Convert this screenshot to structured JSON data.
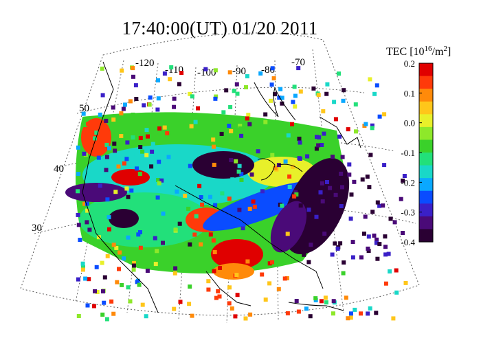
{
  "title": "17:40:00(UT)  01/20 2011",
  "map": {
    "longitude_labels": [
      "-120",
      "-110",
      "-100",
      "-90",
      "-80",
      "-70"
    ],
    "latitude_labels": [
      "50",
      "40",
      "30"
    ],
    "grid": "dotted graticule"
  },
  "colorbar": {
    "label_prefix": "TEC [10",
    "label_exp": "16",
    "label_suffix": "/m",
    "label_sup2": "2",
    "label_close": "]",
    "tick_labels": [
      "0.2",
      "0.1",
      "0.0",
      "-0.1",
      "-0.2",
      "-0.3",
      "-0.4"
    ],
    "range": [
      -0.4,
      0.2
    ],
    "colors": [
      "#2a0033",
      "#4a0a78",
      "#3a20c8",
      "#0a4cff",
      "#0aa8ff",
      "#19d8c8",
      "#22e07a",
      "#3ad12a",
      "#8ee82a",
      "#e8f02a",
      "#ffc61a",
      "#ff8a0a",
      "#ff3a0a",
      "#e00000"
    ]
  }
}
